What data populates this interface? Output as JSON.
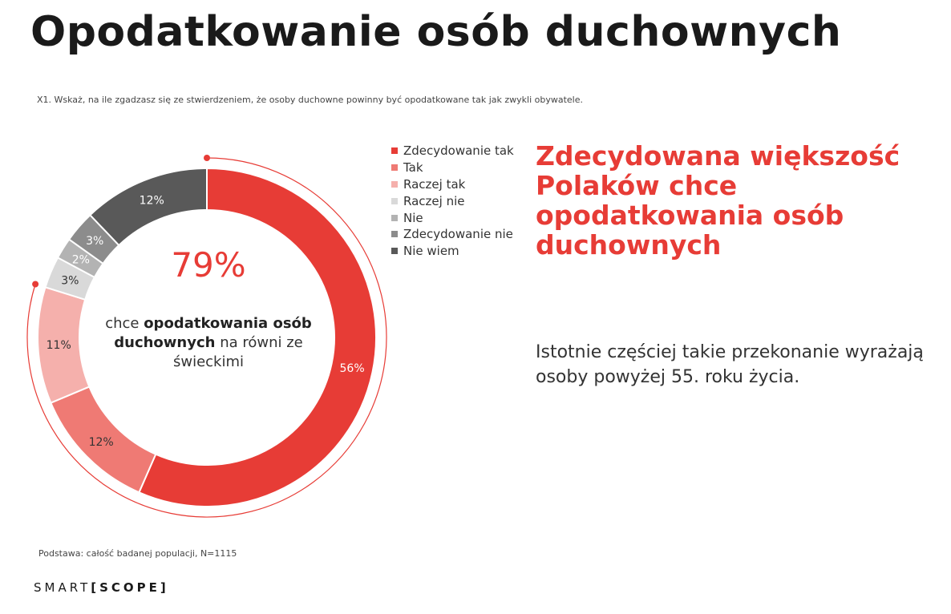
{
  "title": "Opodatkowanie osób duchownych",
  "question": "X1. Wskaż, na ile zgadzasz się ze stwierdzeniem, że osoby duchowne powinny być opodatkowane tak jak zwykli obywatele.",
  "center": {
    "percent": "79%",
    "text_pre": "chce ",
    "text_bold": "opodatkowania osób duchownych",
    "text_post": " na równi ze świeckimi"
  },
  "headline": "Zdecydowana większość Polaków chce opodatkowania osób duchownych",
  "insight": "Istotnie częściej takie przekonanie wyrażają osoby powyżej 55. roku życia.",
  "base_note": "Podstawa: całość badanej populacji, N=1115",
  "logo": {
    "part1": "SMART",
    "bracket_open": "[",
    "part2": "SCOPE",
    "bracket_close": "]"
  },
  "chart_data": {
    "type": "pie",
    "donut": true,
    "categories": [
      "Zdecydowanie tak",
      "Tak",
      "Raczej tak",
      "Raczej nie",
      "Nie",
      "Zdecydowanie nie",
      "Nie wiem"
    ],
    "values": [
      56,
      12,
      11,
      3,
      2,
      3,
      12
    ],
    "labels": [
      "56%",
      "12%",
      "11%",
      "3%",
      "2%",
      "3%",
      "12%"
    ],
    "colors": [
      "#e73c36",
      "#ef7a74",
      "#f5b0ac",
      "#d9d9d9",
      "#b3b3b3",
      "#8c8c8c",
      "#595959"
    ],
    "label_colors": [
      "#ffffff",
      "#333333",
      "#333333",
      "#333333",
      "#ffffff",
      "#ffffff",
      "#ffffff"
    ],
    "legend_position": "right",
    "highlight_arc_categories": [
      "Zdecydowanie tak",
      "Tak",
      "Raczej tak"
    ],
    "highlight_color": "#e73c36"
  }
}
